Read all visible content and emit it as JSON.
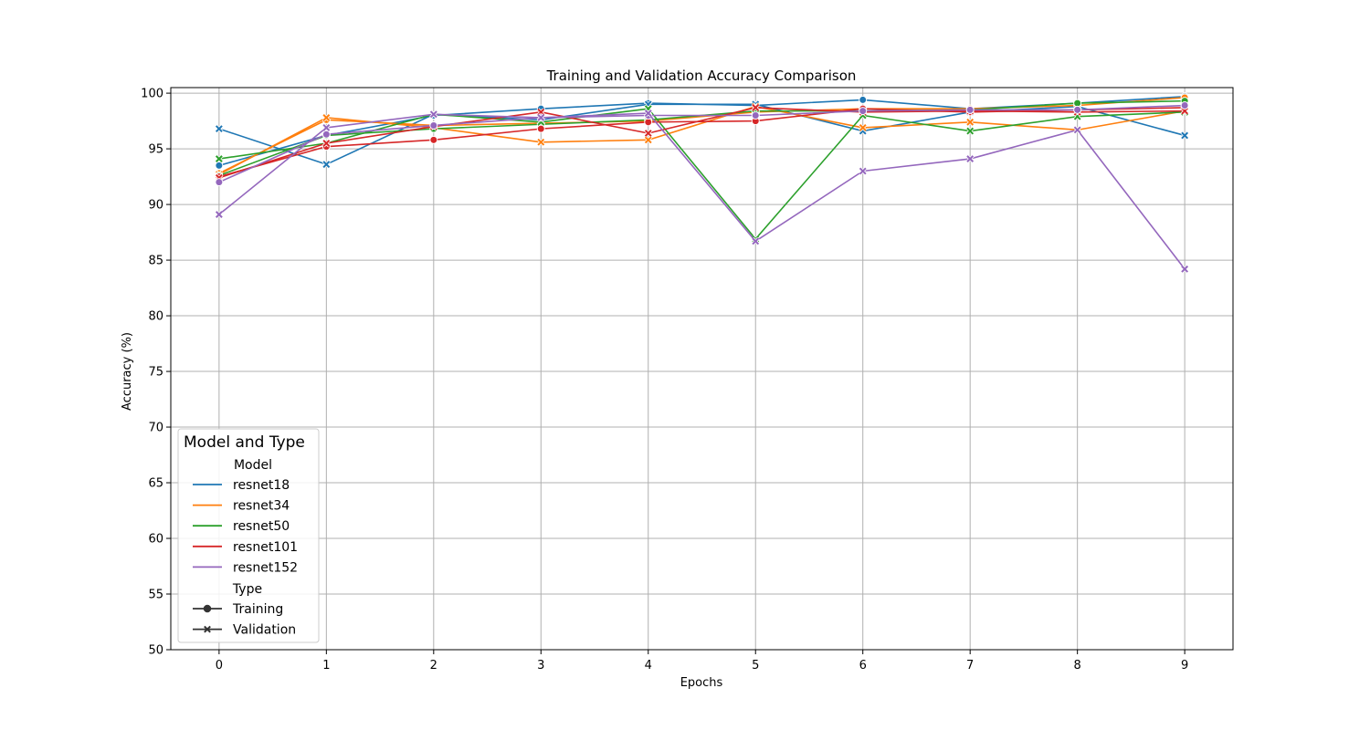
{
  "chart_data": {
    "type": "line",
    "title": "Training and Validation Accuracy Comparison",
    "xlabel": "Epochs",
    "ylabel": "Accuracy (%)",
    "x": [
      0,
      1,
      2,
      3,
      4,
      5,
      6,
      7,
      8,
      9
    ],
    "xlim": [
      -0.45,
      9.45
    ],
    "ylim": [
      50,
      100.5
    ],
    "xticks": [
      0,
      1,
      2,
      3,
      4,
      5,
      6,
      7,
      8,
      9
    ],
    "yticks": [
      50,
      55,
      60,
      65,
      70,
      75,
      80,
      85,
      90,
      95,
      100
    ],
    "grid": true,
    "legend": {
      "title": "Model and Type",
      "placement": "lower-left",
      "model_header": "Model",
      "type_header": "Type",
      "models": [
        "resnet18",
        "resnet34",
        "resnet50",
        "resnet101",
        "resnet152"
      ],
      "types": [
        "Training",
        "Validation"
      ]
    },
    "colors": {
      "resnet18": "#1f77b4",
      "resnet34": "#ff7f0e",
      "resnet50": "#2ca02c",
      "resnet101": "#d62728",
      "resnet152": "#9467bd"
    },
    "series": [
      {
        "name": "resnet18",
        "type": "Training",
        "values": [
          93.5,
          96.2,
          98.0,
          98.6,
          99.1,
          98.9,
          99.4,
          98.6,
          99.1,
          99.7
        ]
      },
      {
        "name": "resnet18",
        "type": "Validation",
        "values": [
          96.8,
          93.6,
          98.1,
          97.6,
          99.0,
          99.0,
          96.6,
          98.3,
          98.8,
          96.2
        ]
      },
      {
        "name": "resnet34",
        "type": "Training",
        "values": [
          92.8,
          97.6,
          97.1,
          97.3,
          97.5,
          98.3,
          98.6,
          98.6,
          98.9,
          99.6
        ]
      },
      {
        "name": "resnet34",
        "type": "Validation",
        "values": [
          92.7,
          97.8,
          96.9,
          95.6,
          95.8,
          98.8,
          96.9,
          97.4,
          96.7,
          98.4
        ]
      },
      {
        "name": "resnet50",
        "type": "Training",
        "values": [
          92.6,
          96.2,
          96.8,
          97.2,
          97.6,
          98.4,
          98.4,
          98.5,
          99.1,
          99.3
        ]
      },
      {
        "name": "resnet50",
        "type": "Validation",
        "values": [
          94.1,
          95.5,
          98.1,
          97.4,
          98.6,
          86.9,
          98.0,
          96.6,
          97.9,
          98.3
        ]
      },
      {
        "name": "resnet101",
        "type": "Training",
        "values": [
          92.5,
          95.2,
          95.8,
          96.8,
          97.4,
          97.5,
          98.6,
          98.3,
          98.5,
          98.7
        ]
      },
      {
        "name": "resnet101",
        "type": "Validation",
        "values": [
          92.4,
          95.5,
          97.0,
          98.3,
          96.4,
          98.7,
          98.3,
          98.4,
          98.3,
          98.4
        ]
      },
      {
        "name": "resnet152",
        "type": "Training",
        "values": [
          92.0,
          96.3,
          97.1,
          97.8,
          98.0,
          98.0,
          98.4,
          98.5,
          98.5,
          98.9
        ]
      },
      {
        "name": "resnet152",
        "type": "Validation",
        "values": [
          89.1,
          96.9,
          98.1,
          97.8,
          98.2,
          86.7,
          93.0,
          94.1,
          96.7,
          84.2
        ]
      }
    ]
  }
}
